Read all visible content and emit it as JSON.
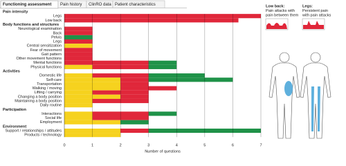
{
  "tabs": [
    "Functioning assessment",
    "Pain history",
    "ClinRO data",
    "Patient characteristics"
  ],
  "chart_data": {
    "type": "stacked-bar-horizontal",
    "x_label": "Number of questions",
    "xlim": [
      0,
      7
    ],
    "xticks": [
      0,
      1,
      2,
      3,
      4,
      5,
      6,
      7
    ],
    "groups": [
      {
        "name": "Pain intensity",
        "categories": [
          "Legs",
          "Low back"
        ]
      },
      {
        "name": "Body functions and structures",
        "categories": [
          "Neurological examination",
          "Back",
          "Pelvis",
          "Legs",
          "Central sensitization",
          "Fear of movement",
          "Gait pattern",
          "Other movement functions",
          "Mental functions",
          "Physical functions"
        ]
      },
      {
        "name": "Activities",
        "categories": [
          "Domestic life",
          "Self-care",
          "Transportation",
          "Walking / moving",
          "Lifting / carrying",
          "Changing a body position",
          "Maintaining a body position",
          "Daily routine"
        ]
      },
      {
        "name": "Participation",
        "categories": [
          "Interactions",
          "Social life",
          "Employment"
        ]
      },
      {
        "name": "Environment",
        "categories": [
          "Support / relationships / attitudes",
          "Products /  technology"
        ]
      }
    ],
    "series": [
      {
        "color": "#f6d21e",
        "values": [
          0,
          0,
          0,
          0,
          0,
          0,
          1,
          0,
          0,
          0,
          0,
          1,
          1,
          2,
          2,
          2,
          1,
          2,
          1,
          1,
          1,
          1,
          2,
          2,
          2
        ]
      },
      {
        "color": "#e0273a",
        "values": [
          7,
          6.2,
          1,
          1,
          0,
          1,
          0,
          1,
          1,
          1,
          3,
          2,
          2,
          1,
          1,
          2,
          2,
          1,
          2,
          0,
          2,
          2,
          0,
          1,
          0
        ]
      },
      {
        "color": "#1f9248",
        "values": [
          0,
          0,
          0,
          0,
          1,
          0,
          0,
          0,
          0,
          0,
          1,
          1,
          2,
          3,
          0,
          0,
          0,
          0,
          0,
          0,
          1,
          0,
          1,
          4,
          0
        ]
      }
    ]
  },
  "legend_panel": {
    "items": [
      {
        "title": "Low back:",
        "text": [
          "Pain attacks with",
          "pain between them"
        ]
      },
      {
        "title": "Legs:",
        "text": [
          "Persistent pain",
          "with pain attacks"
        ]
      }
    ]
  }
}
